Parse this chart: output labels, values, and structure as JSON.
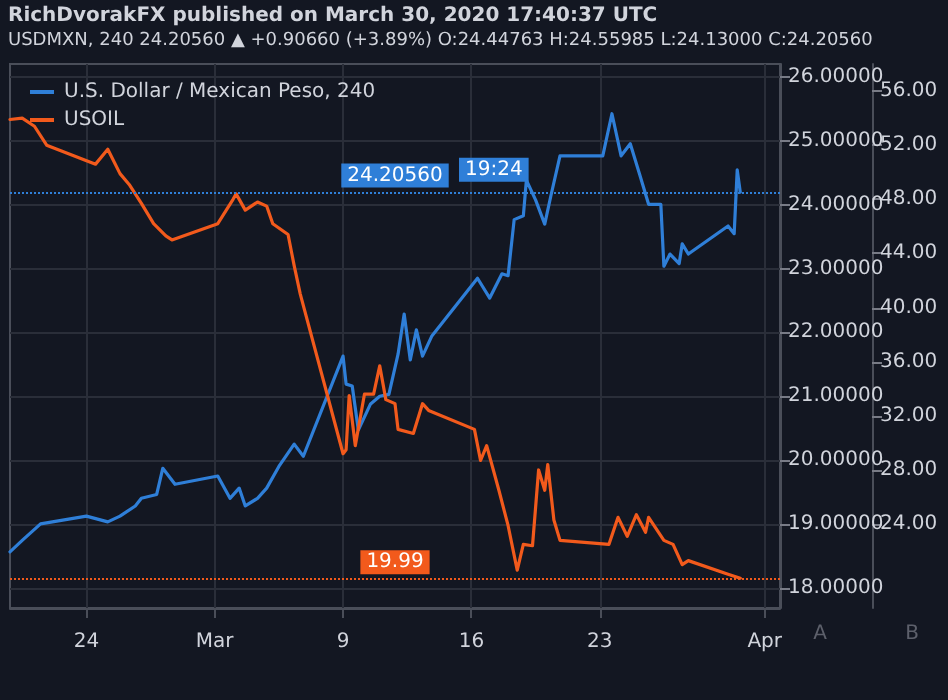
{
  "chart_data": {
    "type": "line",
    "title": "RichDvorakFX published on March 30, 2020 17:40:37 UTC",
    "subtitle": "USDMXN, 240 24.20560 ▲ +0.90660 (+3.89%) O:24.44763 H:24.55985 L:24.13000 C:24.20560",
    "series": [
      {
        "name": "U.S. Dollar / Mexican Peso, 240",
        "color": "#2f7fd8",
        "x": [
          "2020-02-19T20:00",
          "2020-02-20T12:00",
          "2020-02-21T12:00",
          "2020-02-24T00:00",
          "2020-02-25T04:00",
          "2020-02-25T20:00",
          "2020-02-26T16:00",
          "2020-02-27T00:00",
          "2020-02-27T20:00",
          "2020-02-28T04:00",
          "2020-02-28T20:00",
          "2020-03-02T04:00",
          "2020-03-02T20:00",
          "2020-03-03T08:00",
          "2020-03-03T16:00",
          "2020-03-04T08:00",
          "2020-03-04T20:00",
          "2020-03-05T12:00",
          "2020-03-06T08:00",
          "2020-03-06T20:00",
          "2020-03-09T00:00",
          "2020-03-09T04:00",
          "2020-03-09T12:00",
          "2020-03-09T20:00",
          "2020-03-10T12:00",
          "2020-03-11T00:00",
          "2020-03-11T12:00",
          "2020-03-12T00:00",
          "2020-03-12T08:00",
          "2020-03-12T16:00",
          "2020-03-13T00:00",
          "2020-03-13T08:00",
          "2020-03-13T20:00",
          "2020-03-16T08:00",
          "2020-03-17T00:00",
          "2020-03-17T16:00",
          "2020-03-18T00:00",
          "2020-03-18T08:00",
          "2020-03-18T20:00",
          "2020-03-19T00:00",
          "2020-03-19T12:00",
          "2020-03-20T00:00",
          "2020-03-20T08:00",
          "2020-03-20T20:00",
          "2020-03-23T04:00",
          "2020-03-23T16:00",
          "2020-03-24T04:00",
          "2020-03-24T16:00",
          "2020-03-25T04:00",
          "2020-03-25T16:00",
          "2020-03-26T08:00",
          "2020-03-26T12:00",
          "2020-03-26T20:00",
          "2020-03-27T08:00",
          "2020-03-27T12:00",
          "2020-03-27T20:00",
          "2020-03-30T00:00",
          "2020-03-30T08:00",
          "2020-03-30T12:00",
          "2020-03-30T16:00"
        ],
        "values": [
          18.56,
          18.74,
          19.0,
          19.12,
          19.03,
          19.12,
          19.28,
          19.4,
          19.46,
          19.87,
          19.62,
          19.75,
          19.4,
          19.56,
          19.28,
          19.4,
          19.56,
          19.9,
          20.25,
          20.06,
          21.63,
          21.19,
          21.16,
          20.47,
          20.88,
          21.0,
          21.03,
          21.66,
          22.29,
          21.57,
          22.04,
          21.63,
          21.94,
          22.85,
          22.54,
          22.92,
          22.89,
          23.77,
          23.83,
          24.39,
          24.08,
          23.7,
          24.14,
          24.77,
          24.77,
          25.43,
          24.77,
          24.96,
          24.49,
          24.01,
          24.01,
          23.04,
          23.23,
          23.08,
          23.39,
          23.23,
          23.67,
          23.55,
          24.55,
          24.2
        ]
      },
      {
        "name": "USOIL",
        "color": "#f25a1c",
        "axis": "y2",
        "x": [
          "2020-02-19T20:00",
          "2020-02-20T12:00",
          "2020-02-21T04:00",
          "2020-02-21T20:00",
          "2020-02-24T12:00",
          "2020-02-25T04:00",
          "2020-02-25T20:00",
          "2020-02-26T08:00",
          "2020-02-27T00:00",
          "2020-02-27T16:00",
          "2020-02-28T08:00",
          "2020-02-28T16:00",
          "2020-03-02T04:00",
          "2020-03-03T00:00",
          "2020-03-03T04:00",
          "2020-03-03T16:00",
          "2020-03-04T08:00",
          "2020-03-04T20:00",
          "2020-03-05T04:00",
          "2020-03-06T00:00",
          "2020-03-06T08:00",
          "2020-03-06T16:00",
          "2020-03-09T00:00",
          "2020-03-09T04:00",
          "2020-03-09T08:00",
          "2020-03-09T16:00",
          "2020-03-10T04:00",
          "2020-03-10T16:00",
          "2020-03-11T00:00",
          "2020-03-11T08:00",
          "2020-03-11T20:00",
          "2020-03-12T00:00",
          "2020-03-12T20:00",
          "2020-03-13T08:00",
          "2020-03-13T16:00",
          "2020-03-16T04:00",
          "2020-03-16T12:00",
          "2020-03-16T20:00",
          "2020-03-17T12:00",
          "2020-03-18T00:00",
          "2020-03-18T12:00",
          "2020-03-18T20:00",
          "2020-03-19T08:00",
          "2020-03-19T16:00",
          "2020-03-20T00:00",
          "2020-03-20T04:00",
          "2020-03-20T12:00",
          "2020-03-20T20:00",
          "2020-03-23T12:00",
          "2020-03-24T00:00",
          "2020-03-24T12:00",
          "2020-03-25T00:00",
          "2020-03-25T12:00",
          "2020-03-25T16:00",
          "2020-03-26T12:00",
          "2020-03-27T00:00",
          "2020-03-27T12:00",
          "2020-03-27T20:00",
          "2020-03-30T00:00",
          "2020-03-30T16:00"
        ],
        "values": [
          53.9,
          54.0,
          53.4,
          52.0,
          50.6,
          51.7,
          49.9,
          49.1,
          47.7,
          46.2,
          45.3,
          45.0,
          46.2,
          48.0,
          48.4,
          47.2,
          47.8,
          47.5,
          46.2,
          45.4,
          43.1,
          41.0,
          29.2,
          29.5,
          33.5,
          29.8,
          33.6,
          33.6,
          35.7,
          33.2,
          32.9,
          31.0,
          30.7,
          32.9,
          32.4,
          31.0,
          28.7,
          29.8,
          26.5,
          23.9,
          20.6,
          22.5,
          22.4,
          28.0,
          26.5,
          28.4,
          24.3,
          22.8,
          22.5,
          24.5,
          23.1,
          24.7,
          23.4,
          24.5,
          22.8,
          22.5,
          21.0,
          21.3,
          20.3,
          20.0
        ]
      }
    ],
    "xlim": [
      "2020-02-19T20:00",
      "2020-04-01T20:00"
    ],
    "xticks": [
      {
        "value": "2020-02-24",
        "label": "24"
      },
      {
        "value": "2020-03-02",
        "label": "Mar"
      },
      {
        "value": "2020-03-09",
        "label": "9"
      },
      {
        "value": "2020-03-16",
        "label": "16"
      },
      {
        "value": "2020-03-23",
        "label": "23"
      },
      {
        "value": "2020-04-01",
        "label": "Apr"
      }
    ],
    "ylim": [
      17.68,
      26.21
    ],
    "yticks": [
      {
        "value": 18,
        "label": "18.00000"
      },
      {
        "value": 19,
        "label": "19.00000"
      },
      {
        "value": 20,
        "label": "20.00000"
      },
      {
        "value": 21,
        "label": "21.00000"
      },
      {
        "value": 22,
        "label": "22.00000"
      },
      {
        "value": 23,
        "label": "23.00000"
      },
      {
        "value": 24,
        "label": "24.00000"
      },
      {
        "value": 25,
        "label": "25.00000"
      },
      {
        "value": 26,
        "label": "26.00000"
      }
    ],
    "y2lim": [
      17.8,
      58.0
    ],
    "y2ticks": [
      {
        "value": 24,
        "label": "24.00"
      },
      {
        "value": 28,
        "label": "28.00"
      },
      {
        "value": 32,
        "label": "32.00"
      },
      {
        "value": 36,
        "label": "36.00"
      },
      {
        "value": 40,
        "label": "40.00"
      },
      {
        "value": 44,
        "label": "44.00"
      },
      {
        "value": 48,
        "label": "48.00"
      },
      {
        "value": 52,
        "label": "52.00"
      },
      {
        "value": 56,
        "label": "56.00"
      }
    ],
    "ref_lines": [
      {
        "axis": "y",
        "value": 24.2056,
        "label": "24.20560",
        "color": "#2f7fd8",
        "line_style": "dotted"
      },
      {
        "axis": "y2",
        "value": 19.99,
        "label": "19.99",
        "color": "#f25a1c",
        "line_style": "dotted"
      }
    ],
    "annotations": [
      "19:24",
      "A",
      "B"
    ],
    "grid": true,
    "legend": "top left",
    "marker": "none",
    "line_style": "solid"
  }
}
